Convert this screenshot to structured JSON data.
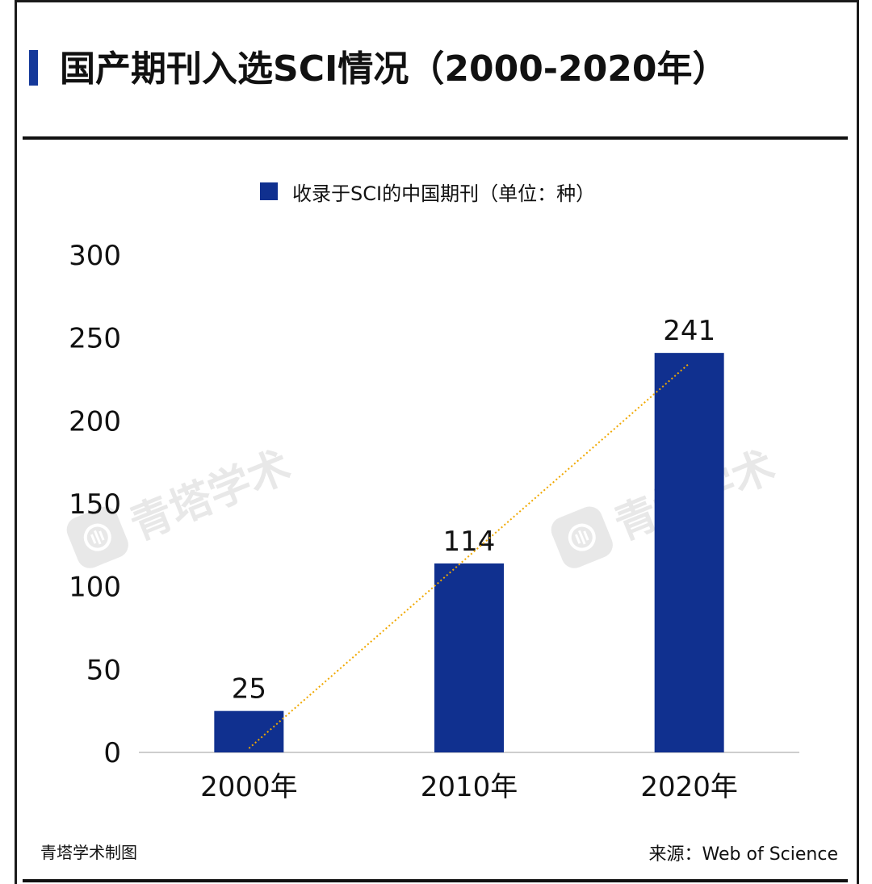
{
  "title": "国产期刊入选SCI情况（2000-2020年）",
  "footer": {
    "left": "青塔学术制图",
    "right": "来源：Web of Science"
  },
  "watermark": {
    "text": "青塔学术"
  },
  "colors": {
    "bar": "#10308f",
    "accent": "#15399a",
    "trendline": "#f0a800",
    "axis": "#bdbdbd"
  },
  "chart_data": {
    "type": "bar",
    "categories": [
      "2000年",
      "2010年",
      "2020年"
    ],
    "series": [
      {
        "name": "收录于SCI的中国期刊（单位：种）",
        "values": [
          25,
          114,
          241
        ]
      }
    ],
    "ylim": [
      0,
      300
    ],
    "yticks": [
      0,
      50,
      100,
      150,
      200,
      250,
      300
    ],
    "data_labels": [
      "25",
      "114",
      "241"
    ],
    "trendline": "linear",
    "legend": "top",
    "grid": false
  }
}
